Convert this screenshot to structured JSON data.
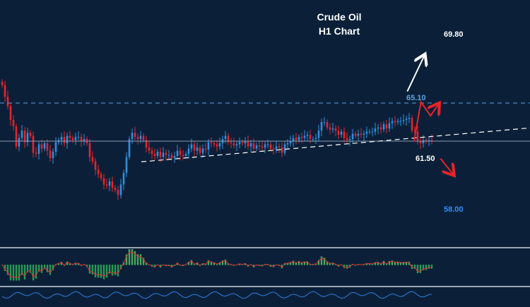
{
  "chart_data": {
    "type": "candlestick",
    "title": "Crude Oil",
    "subtitle": "H1 Chart",
    "levels": [
      {
        "price": 65.1,
        "label": "65.10",
        "style": "dashed",
        "color": "#5da3e0"
      },
      {
        "price": 61.5,
        "label": "61.50",
        "style": "solid",
        "color": "#8a9bb0"
      }
    ],
    "targets": [
      {
        "price": 69.8,
        "label": "69.80",
        "color": "#ffffff"
      },
      {
        "price": 58.0,
        "label": "58.00",
        "color": "#2f8fff"
      }
    ],
    "closes": [
      66.8,
      65.7,
      64.8,
      63.5,
      62.9,
      61.0,
      61.8,
      62.5,
      61.4,
      62.3,
      62.0,
      60.4,
      60.3,
      61.2,
      60.8,
      61.3,
      60.6,
      59.9,
      60.5,
      61.4,
      61.6,
      61.9,
      61.3,
      62.0,
      61.8,
      61.6,
      61.9,
      61.9,
      61.5,
      61.7,
      61.3,
      60.0,
      59.6,
      58.8,
      58.4,
      58.0,
      57.4,
      57.3,
      57.7,
      57.1,
      56.9,
      56.4,
      57.4,
      58.5,
      60.0,
      61.7,
      62.3,
      61.9,
      61.7,
      62.0,
      61.6,
      60.9,
      60.6,
      60.3,
      60.1,
      60.5,
      60.0,
      60.4,
      60.2,
      60.2,
      59.9,
      60.1,
      60.6,
      60.2,
      60.1,
      60.3,
      60.8,
      61.2,
      60.6,
      60.9,
      60.4,
      60.8,
      60.7,
      61.4,
      61.3,
      61.2,
      61.0,
      61.3,
      61.7,
      62.0,
      61.4,
      61.3,
      61.1,
      61.2,
      61.4,
      61.3,
      61.5,
      61.0,
      61.3,
      60.8,
      61.1,
      61.0,
      60.9,
      61.2,
      61.2,
      60.8,
      60.7,
      61.0,
      60.9,
      60.4,
      61.2,
      61.3,
      61.5,
      61.8,
      61.6,
      61.9,
      61.8,
      62.0,
      62.1,
      61.7,
      61.7,
      61.8,
      62.5,
      63.3,
      63.3,
      62.8,
      62.6,
      62.7,
      62.5,
      62.1,
      62.4,
      61.8,
      61.6,
      61.7,
      62.2,
      62.0,
      62.2,
      62.1,
      62.2,
      62.4,
      62.4,
      62.4,
      62.7,
      62.8,
      62.6,
      63.1,
      62.7,
      63.2,
      63.4,
      63.3,
      63.4,
      63.4,
      63.5,
      63.6,
      63.7,
      62.5,
      62.4,
      61.5,
      61.3,
      61.6,
      61.5,
      61.6,
      61.5
    ],
    "trendlines": [
      {
        "from": [
          0.0,
          59.55
        ],
        "to": [
          1.0,
          62.75
        ],
        "style": "dashed",
        "color": "#ffffff"
      }
    ],
    "forecast": [
      {
        "path": [
          [
            62.0,
            61.45
          ],
          [
            63.05,
            65.2
          ],
          [
            64.5,
            63.9
          ],
          [
            65.6,
            64.9
          ]
        ],
        "color": "#e8232a",
        "arrow": true
      },
      {
        "path": [
          [
            61.0,
            66.2
          ],
          [
            63.5,
            69.5
          ]
        ],
        "color": "#ffffff",
        "arrow": true
      },
      {
        "path": [
          [
            66.0,
            59.85
          ],
          [
            67.8,
            58.45
          ]
        ],
        "color": "#e8232a",
        "arrow": true
      }
    ],
    "indicators": [
      {
        "type": "histogram",
        "name": "",
        "up_color": "#4aa85c",
        "down_color": "#2a9a55",
        "signal_color": "#e03030"
      },
      {
        "type": "oscillator",
        "name": "",
        "color": "#2f7de0"
      }
    ]
  },
  "colors": {
    "background": "#0b2038",
    "bull": "#2e8fe0",
    "bear": "#e8232a",
    "panel_divider": "#9aa6b4"
  }
}
